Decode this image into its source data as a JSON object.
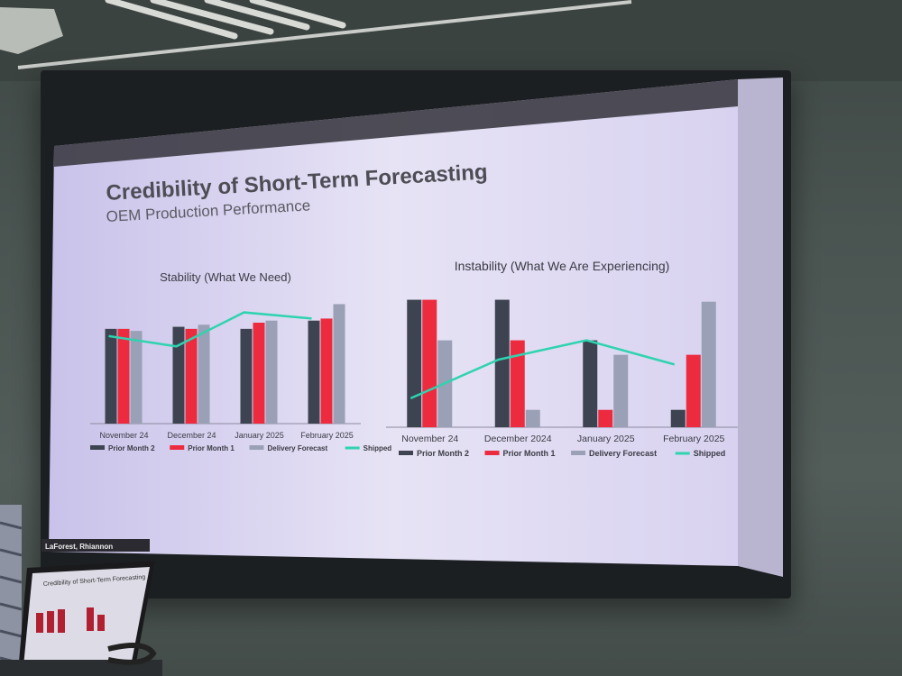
{
  "slide": {
    "title": "Credibility of Short-Term Forecasting",
    "subtitle": "OEM Production Performance",
    "footer_name": "LaForest, Rhiannon"
  },
  "colors": {
    "prior_month_2": "#3d4350",
    "prior_month_1": "#ec2b3f",
    "delivery_forecast": "#9aa0b6",
    "shipped": "#2fd3b0"
  },
  "chart_data": [
    {
      "type": "bar",
      "title": "Stability (What We Need)",
      "categories": [
        "November 24",
        "December 24",
        "January 2025",
        "February 2025"
      ],
      "series": [
        {
          "name": "Prior Month 2",
          "values": [
            92,
            94,
            92,
            100
          ]
        },
        {
          "name": "Prior Month 1",
          "values": [
            92,
            92,
            98,
            102
          ]
        },
        {
          "name": "Delivery Forecast",
          "values": [
            90,
            96,
            100,
            116
          ]
        },
        {
          "name": "Shipped",
          "type": "line",
          "values": [
            85,
            75,
            108,
            102
          ]
        }
      ],
      "ylim": [
        0,
        140
      ],
      "legend": "bottom"
    },
    {
      "type": "bar",
      "title": "Instability (What We Are Experiencing)",
      "categories": [
        "November 24",
        "December 2024",
        "January 2025",
        "February 2025"
      ],
      "series": [
        {
          "name": "Prior Month 2",
          "values": [
            132,
            132,
            90,
            18
          ]
        },
        {
          "name": "Prior Month 1",
          "values": [
            132,
            90,
            18,
            75
          ]
        },
        {
          "name": "Delivery Forecast",
          "values": [
            90,
            18,
            75,
            130
          ]
        },
        {
          "name": "Shipped",
          "type": "line",
          "values": [
            30,
            70,
            90,
            65
          ]
        }
      ],
      "ylim": [
        0,
        140
      ],
      "legend": "bottom"
    }
  ]
}
